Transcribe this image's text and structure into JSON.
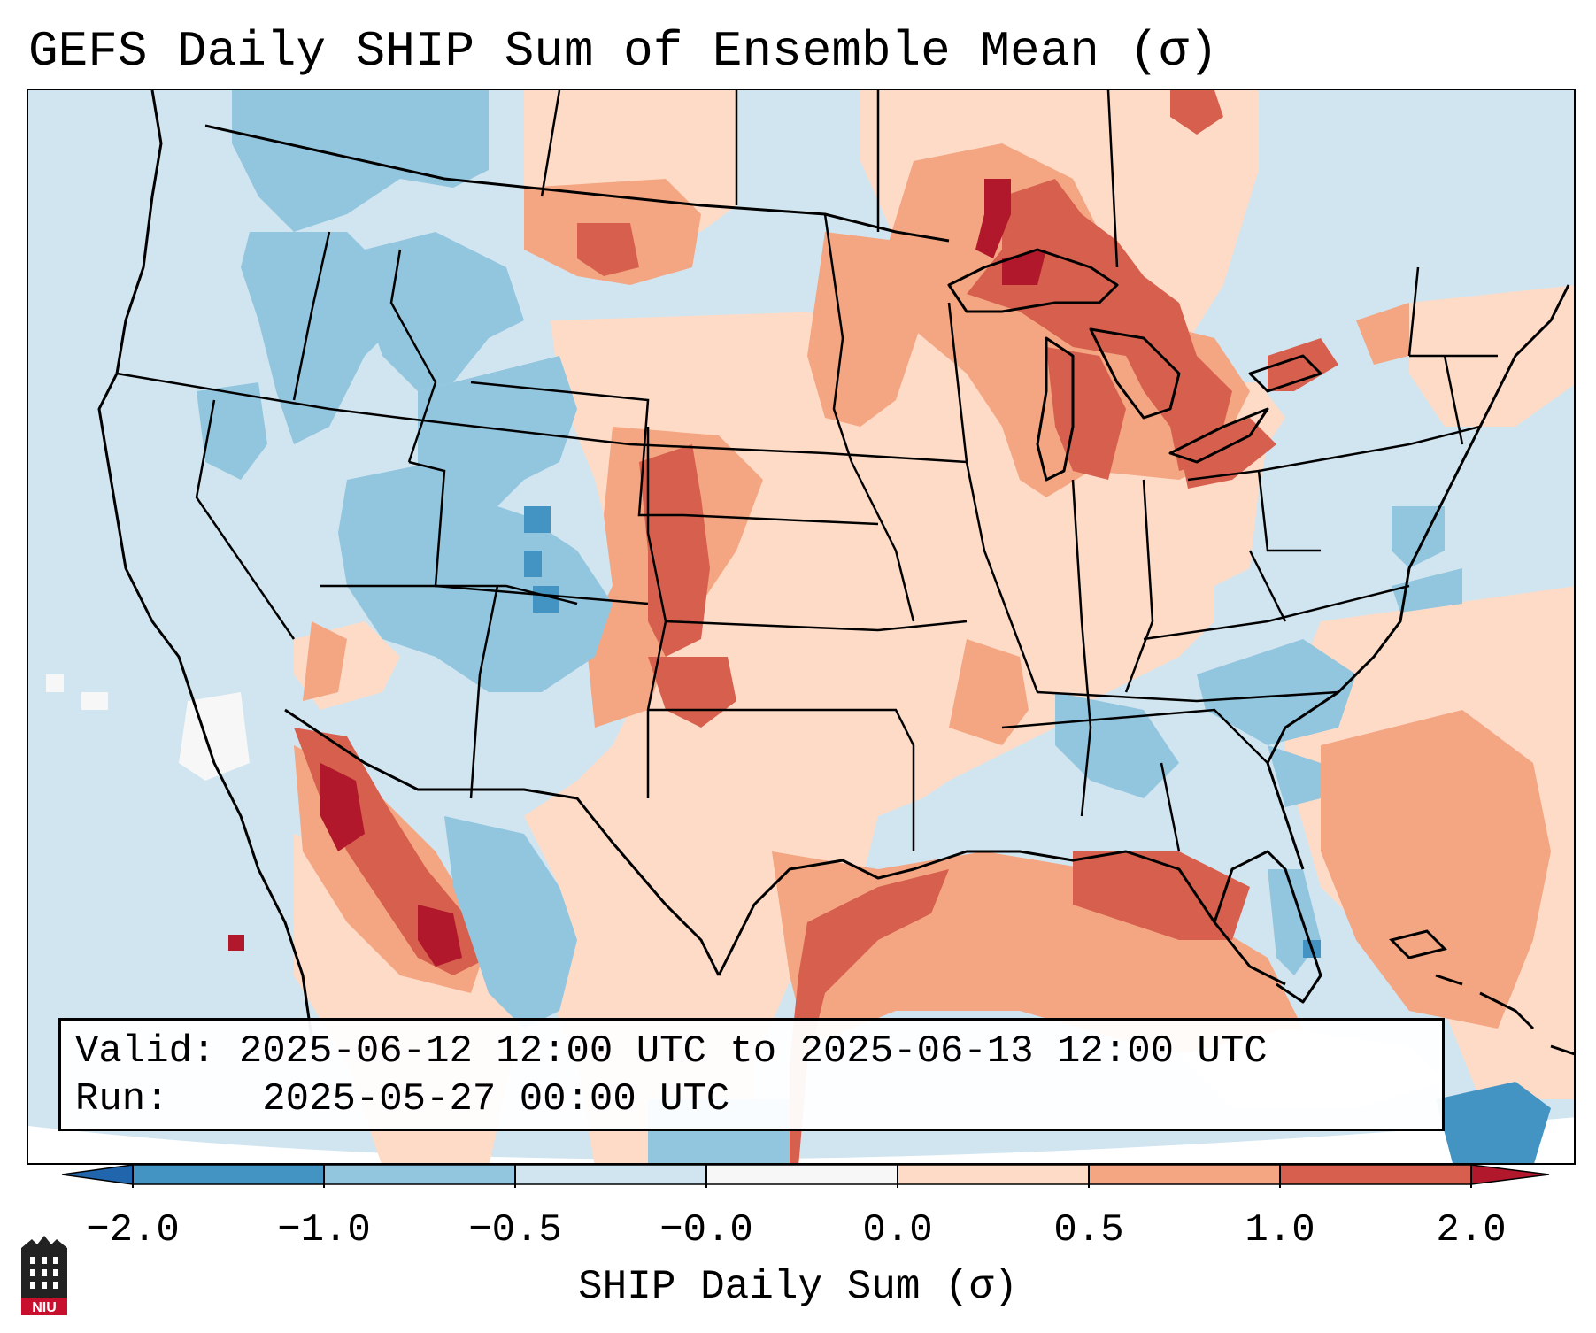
{
  "title": "GEFS Daily SHIP Sum of Ensemble Mean (σ)",
  "info": {
    "valid_label": "Valid:",
    "valid_value": "2025-06-12 12:00 UTC to 2025-06-13 12:00 UTC",
    "run_label": "Run:",
    "run_value": "2025-05-27 00:00 UTC"
  },
  "colorbar": {
    "label": "SHIP Daily Sum (σ)",
    "ticks": [
      "−2.0",
      "−1.0",
      "−0.5",
      "−0.0",
      "0.0",
      "0.5",
      "1.0",
      "2.0"
    ],
    "colors": [
      "#2166ac",
      "#4393c3",
      "#92c5de",
      "#d1e5f0",
      "#f7f7f7",
      "#fddbc7",
      "#f4a582",
      "#d6604d",
      "#b2182b"
    ]
  },
  "logo": {
    "text": "NIU",
    "color": "#c8102e"
  }
}
